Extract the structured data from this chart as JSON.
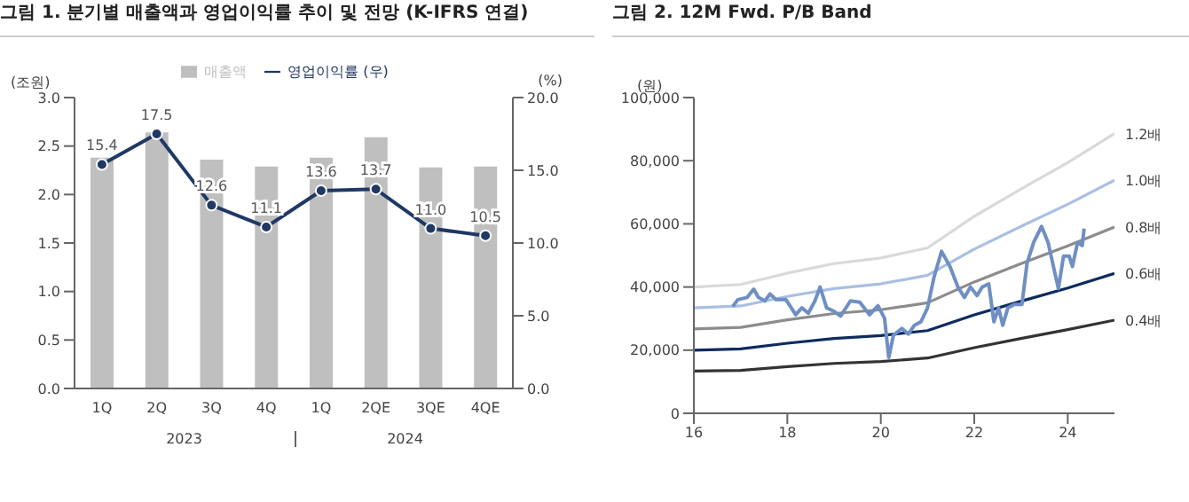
{
  "chart_data": [
    {
      "type": "bar",
      "title": "그림 1. 분기별 매출액과 영업이익률 추이 및 전망 (K-IFRS 연결)",
      "ylabel": "(조원)",
      "y2label": "(%)",
      "categories": [
        "1Q",
        "2Q",
        "3Q",
        "4Q",
        "1Q",
        "2QE",
        "3QE",
        "4QE"
      ],
      "annotations": [
        "2023",
        "2024"
      ],
      "series": [
        {
          "name": "매출액",
          "type": "bar",
          "color": "#bfbfbf",
          "values": [
            2.38,
            2.64,
            2.36,
            2.29,
            2.38,
            2.59,
            2.28,
            2.29
          ]
        },
        {
          "name": "영업이익률 (우)",
          "type": "line",
          "axis": "y2",
          "color": "#1f3864",
          "marker": "circle",
          "values": [
            15.4,
            17.5,
            12.6,
            11.1,
            13.6,
            13.7,
            11.0,
            10.5
          ],
          "value_labels": [
            "15.4",
            "17.5",
            "12.6",
            "11.1",
            "13.6",
            "13.7",
            "11.0",
            "10.5"
          ]
        }
      ],
      "ylim": [
        0,
        3
      ],
      "yticks": [
        {
          "value": 0,
          "label": "0.0"
        },
        {
          "value": 0.5,
          "label": "0.5"
        },
        {
          "value": 1,
          "label": "1.0"
        },
        {
          "value": 1.5,
          "label": "1.5"
        },
        {
          "value": 2,
          "label": "2.0"
        },
        {
          "value": 2.5,
          "label": "2.5"
        },
        {
          "value": 3,
          "label": "3.0"
        }
      ],
      "y2lim": [
        0,
        20
      ],
      "y2ticks": [
        {
          "value": 0,
          "label": "0.0"
        },
        {
          "value": 5,
          "label": "5.0"
        },
        {
          "value": 10,
          "label": "10.0"
        },
        {
          "value": 15,
          "label": "15.0"
        },
        {
          "value": 20,
          "label": "20.0"
        }
      ],
      "legend": "top"
    },
    {
      "type": "line",
      "title": "그림 2. 12M Fwd. P/B Band",
      "ylabel": "(원)",
      "xlim": [
        16,
        25
      ],
      "xticks": [
        16,
        18,
        20,
        22,
        24
      ],
      "ylim": [
        0,
        100000
      ],
      "yticks": [
        0,
        {
          "value": 20000,
          "label": "20,000"
        },
        {
          "value": 40000,
          "label": "40,000"
        },
        {
          "value": 60000,
          "label": "60,000"
        },
        {
          "value": 80000,
          "label": "80,000"
        },
        {
          "value": 100000,
          "label": "100,000"
        }
      ],
      "series": [
        {
          "name": "1.2배",
          "color": "#d9d9d9",
          "x": [
            16,
            17,
            18,
            19,
            20,
            21,
            22,
            23,
            24,
            25
          ],
          "values": [
            40000,
            40800,
            44400,
            47400,
            49200,
            52400,
            62400,
            71000,
            79400,
            88600
          ]
        },
        {
          "name": "1.0배",
          "color": "#a9bfe3",
          "x": [
            16,
            17,
            18,
            19,
            20,
            21,
            22,
            23,
            24,
            25
          ],
          "values": [
            33400,
            34000,
            37000,
            39500,
            41000,
            43700,
            52000,
            59200,
            66200,
            73800
          ]
        },
        {
          "name": "0.8배",
          "color": "#8c8c8c",
          "x": [
            16,
            17,
            18,
            19,
            20,
            21,
            22,
            23,
            24,
            25
          ],
          "values": [
            26700,
            27200,
            29600,
            31600,
            32800,
            35000,
            41600,
            47400,
            53000,
            59000
          ]
        },
        {
          "name": "0.6배",
          "color": "#0d2b5e",
          "x": [
            16,
            17,
            18,
            19,
            20,
            21,
            22,
            23,
            24,
            25
          ],
          "values": [
            20000,
            20400,
            22200,
            23700,
            24600,
            26200,
            31200,
            35500,
            39700,
            44300
          ]
        },
        {
          "name": "0.4배",
          "color": "#333333",
          "x": [
            16,
            17,
            18,
            19,
            20,
            21,
            22,
            23,
            24,
            25
          ],
          "values": [
            13400,
            13600,
            14800,
            15800,
            16400,
            17500,
            20800,
            23700,
            26500,
            29500
          ]
        },
        {
          "color": "#6f8fc4",
          "x": [
            16.83,
            16.94,
            17.14,
            17.28,
            17.38,
            17.52,
            17.63,
            17.76,
            17.97,
            18.18,
            18.31,
            18.45,
            18.59,
            18.7,
            18.84,
            19.0,
            19.14,
            19.35,
            19.55,
            19.76,
            19.94,
            20.08,
            20.17,
            20.27,
            20.45,
            20.59,
            20.72,
            20.86,
            21.0,
            21.14,
            21.3,
            21.48,
            21.65,
            21.79,
            21.92,
            22.06,
            22.17,
            22.31,
            22.42,
            22.52,
            22.61,
            22.72,
            22.86,
            23.02,
            23.13,
            23.27,
            23.44,
            23.58,
            23.71,
            23.8,
            23.91,
            24.03,
            24.1,
            24.21,
            24.31,
            24.35
          ],
          "values": [
            33800,
            36000,
            36700,
            39300,
            36700,
            35600,
            37800,
            36000,
            36000,
            31200,
            33400,
            31700,
            35600,
            40000,
            33400,
            32300,
            30800,
            35600,
            35200,
            31200,
            34100,
            30100,
            17700,
            24700,
            26900,
            25100,
            27900,
            29000,
            33400,
            43200,
            51300,
            46500,
            40000,
            36700,
            40000,
            37300,
            40000,
            41000,
            29000,
            33400,
            27900,
            33400,
            34500,
            34500,
            47600,
            54100,
            59200,
            54100,
            45400,
            39500,
            49800,
            49800,
            46500,
            54100,
            53100,
            58500
          ]
        }
      ],
      "marker": "none"
    }
  ]
}
